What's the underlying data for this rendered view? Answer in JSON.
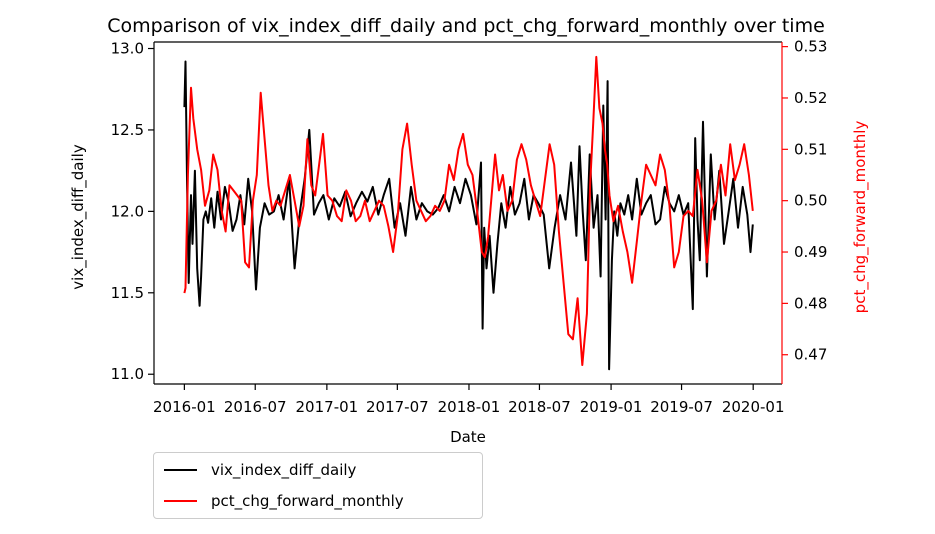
{
  "chart_data": {
    "type": "line",
    "title": "Comparison of vix_index_diff_daily and pct_chg_forward_monthly over time",
    "xlabel": "Date",
    "x_ticks": [
      "2016-01",
      "2016-07",
      "2017-01",
      "2017-07",
      "2018-01",
      "2018-07",
      "2019-01",
      "2019-07",
      "2020-01"
    ],
    "xlim": [
      "2015-10-15",
      "2020-03-15"
    ],
    "left_axis": {
      "label": "vix_index_diff_daily",
      "ylim": [
        10.94,
        13.04
      ],
      "ticks": [
        "11.0",
        "11.5",
        "12.0",
        "12.5",
        "13.0"
      ],
      "color": "#000000"
    },
    "right_axis": {
      "label": "pct_chg_forward_monthly",
      "ylim": [
        0.4643,
        0.5309
      ],
      "ticks": [
        "0.47",
        "0.48",
        "0.49",
        "0.50",
        "0.51",
        "0.52",
        "0.53"
      ],
      "color": "#ff0000"
    },
    "series": [
      {
        "name": "vix_index_diff_daily",
        "axis": "left",
        "color": "#000000",
        "x": [
          "2016-01-01",
          "2016-01-04",
          "2016-01-08",
          "2016-01-12",
          "2016-01-18",
          "2016-01-22",
          "2016-01-28",
          "2016-02-03",
          "2016-02-09",
          "2016-02-13",
          "2016-02-19",
          "2016-02-25",
          "2016-03-02",
          "2016-03-10",
          "2016-03-18",
          "2016-03-26",
          "2016-04-04",
          "2016-04-14",
          "2016-04-24",
          "2016-05-04",
          "2016-05-14",
          "2016-05-24",
          "2016-06-03",
          "2016-06-13",
          "2016-06-23",
          "2016-07-03",
          "2016-07-13",
          "2016-07-25",
          "2016-08-06",
          "2016-08-18",
          "2016-08-30",
          "2016-09-12",
          "2016-09-26",
          "2016-10-10",
          "2016-10-24",
          "2016-11-05",
          "2016-11-17",
          "2016-11-29",
          "2016-12-11",
          "2016-12-23",
          "2017-01-06",
          "2017-01-20",
          "2017-02-03",
          "2017-02-17",
          "2017-03-03",
          "2017-03-17",
          "2017-04-01",
          "2017-04-15",
          "2017-04-29",
          "2017-05-13",
          "2017-05-27",
          "2017-06-10",
          "2017-06-24",
          "2017-07-08",
          "2017-07-22",
          "2017-08-05",
          "2017-08-19",
          "2017-09-02",
          "2017-09-16",
          "2017-09-30",
          "2017-10-14",
          "2017-10-28",
          "2017-11-11",
          "2017-11-25",
          "2017-12-09",
          "2017-12-23",
          "2018-01-06",
          "2018-01-20",
          "2018-02-01",
          "2018-02-05",
          "2018-02-09",
          "2018-02-15",
          "2018-02-23",
          "2018-03-05",
          "2018-03-15",
          "2018-03-25",
          "2018-04-05",
          "2018-04-17",
          "2018-04-29",
          "2018-05-11",
          "2018-05-23",
          "2018-06-04",
          "2018-06-16",
          "2018-06-28",
          "2018-07-12",
          "2018-07-26",
          "2018-08-09",
          "2018-08-23",
          "2018-09-06",
          "2018-09-20",
          "2018-10-04",
          "2018-10-12",
          "2018-10-20",
          "2018-10-28",
          "2018-11-07",
          "2018-11-17",
          "2018-11-27",
          "2018-12-05",
          "2018-12-12",
          "2018-12-18",
          "2018-12-23",
          "2018-12-27",
          "2019-01-03",
          "2019-01-09",
          "2019-01-17",
          "2019-01-25",
          "2019-02-04",
          "2019-02-14",
          "2019-02-24",
          "2019-03-08",
          "2019-03-20",
          "2019-04-01",
          "2019-04-13",
          "2019-04-25",
          "2019-05-07",
          "2019-05-19",
          "2019-05-31",
          "2019-06-12",
          "2019-06-24",
          "2019-07-06",
          "2019-07-18",
          "2019-07-30",
          "2019-08-05",
          "2019-08-11",
          "2019-08-17",
          "2019-08-25",
          "2019-09-04",
          "2019-09-14",
          "2019-09-24",
          "2019-10-06",
          "2019-10-18",
          "2019-10-30",
          "2019-11-11",
          "2019-11-23",
          "2019-12-05",
          "2019-12-17",
          "2019-12-25",
          "2019-12-31"
        ],
        "values": [
          12.64,
          12.92,
          12.15,
          11.56,
          12.1,
          11.8,
          12.25,
          11.65,
          11.42,
          11.6,
          11.95,
          12.0,
          11.93,
          12.08,
          11.9,
          12.12,
          11.95,
          12.15,
          12.05,
          11.88,
          11.95,
          12.1,
          11.92,
          12.2,
          12.0,
          11.52,
          11.9,
          12.05,
          11.98,
          12.0,
          12.1,
          11.95,
          12.2,
          11.65,
          12.0,
          12.2,
          12.5,
          11.98,
          12.05,
          12.1,
          11.95,
          12.08,
          12.03,
          12.12,
          11.97,
          12.05,
          12.12,
          12.06,
          12.15,
          11.98,
          12.1,
          12.2,
          11.9,
          12.05,
          11.85,
          12.15,
          11.95,
          12.05,
          12.0,
          11.98,
          12.02,
          12.1,
          12.0,
          12.15,
          12.05,
          12.2,
          12.1,
          11.92,
          12.3,
          11.28,
          11.9,
          11.65,
          11.85,
          11.5,
          11.8,
          12.05,
          11.9,
          12.15,
          11.98,
          12.05,
          12.2,
          11.95,
          12.1,
          12.05,
          11.98,
          11.65,
          11.9,
          12.1,
          11.95,
          12.3,
          11.85,
          12.4,
          12.0,
          11.7,
          12.35,
          11.9,
          12.1,
          11.6,
          12.65,
          11.95,
          12.8,
          11.03,
          11.7,
          12.0,
          11.85,
          12.05,
          11.98,
          12.1,
          11.95,
          12.2,
          11.98,
          12.05,
          12.1,
          11.92,
          11.95,
          12.15,
          12.05,
          12.0,
          12.1,
          11.98,
          12.05,
          11.4,
          12.45,
          11.95,
          11.7,
          12.55,
          11.6,
          12.35,
          11.95,
          12.25,
          11.8,
          12.0,
          12.2,
          11.9,
          12.15,
          11.98,
          11.75,
          11.92
        ]
      },
      {
        "name": "pct_chg_forward_monthly",
        "axis": "right",
        "color": "#ff0000",
        "x": [
          "2016-01-01",
          "2016-01-04",
          "2016-01-10",
          "2016-01-18",
          "2016-01-24",
          "2016-02-03",
          "2016-02-13",
          "2016-02-23",
          "2016-03-05",
          "2016-03-15",
          "2016-03-26",
          "2016-04-06",
          "2016-04-16",
          "2016-04-26",
          "2016-05-06",
          "2016-05-16",
          "2016-05-26",
          "2016-06-05",
          "2016-06-15",
          "2016-06-25",
          "2016-07-05",
          "2016-07-15",
          "2016-07-25",
          "2016-08-04",
          "2016-08-14",
          "2016-08-24",
          "2016-09-04",
          "2016-09-16",
          "2016-09-28",
          "2016-10-10",
          "2016-10-22",
          "2016-11-02",
          "2016-11-12",
          "2016-11-22",
          "2016-12-02",
          "2016-12-12",
          "2016-12-22",
          "2017-01-03",
          "2017-01-15",
          "2017-01-27",
          "2017-02-08",
          "2017-02-20",
          "2017-03-04",
          "2017-03-16",
          "2017-03-28",
          "2017-04-09",
          "2017-04-21",
          "2017-05-03",
          "2017-05-15",
          "2017-05-27",
          "2017-06-08",
          "2017-06-20",
          "2017-07-02",
          "2017-07-14",
          "2017-07-26",
          "2017-08-07",
          "2017-08-19",
          "2017-08-31",
          "2017-09-12",
          "2017-09-24",
          "2017-10-06",
          "2017-10-18",
          "2017-10-30",
          "2017-11-11",
          "2017-11-23",
          "2017-12-05",
          "2017-12-17",
          "2017-12-29",
          "2018-01-10",
          "2018-01-22",
          "2018-02-03",
          "2018-02-11",
          "2018-02-19",
          "2018-02-27",
          "2018-03-09",
          "2018-03-19",
          "2018-03-29",
          "2018-04-10",
          "2018-04-22",
          "2018-05-04",
          "2018-05-16",
          "2018-05-28",
          "2018-06-09",
          "2018-06-21",
          "2018-07-03",
          "2018-07-15",
          "2018-07-27",
          "2018-08-08",
          "2018-08-20",
          "2018-09-01",
          "2018-09-13",
          "2018-09-25",
          "2018-10-07",
          "2018-10-19",
          "2018-10-31",
          "2018-11-08",
          "2018-11-16",
          "2018-11-24",
          "2018-12-02",
          "2018-12-10",
          "2018-12-16",
          "2018-12-22",
          "2018-12-28",
          "2019-01-07",
          "2019-01-19",
          "2019-01-31",
          "2019-02-12",
          "2019-02-24",
          "2019-03-08",
          "2019-03-20",
          "2019-04-01",
          "2019-04-13",
          "2019-04-25",
          "2019-05-07",
          "2019-05-19",
          "2019-05-31",
          "2019-06-12",
          "2019-06-24",
          "2019-07-06",
          "2019-07-18",
          "2019-07-30",
          "2019-08-11",
          "2019-08-23",
          "2019-09-04",
          "2019-09-16",
          "2019-09-28",
          "2019-10-10",
          "2019-10-22",
          "2019-11-03",
          "2019-11-15",
          "2019-11-27",
          "2019-12-09",
          "2019-12-21",
          "2019-12-31"
        ],
        "values": [
          0.482,
          0.483,
          0.505,
          0.522,
          0.516,
          0.51,
          0.506,
          0.499,
          0.502,
          0.509,
          0.506,
          0.498,
          0.494,
          0.503,
          0.502,
          0.501,
          0.5,
          0.488,
          0.487,
          0.5,
          0.505,
          0.521,
          0.512,
          0.503,
          0.498,
          0.5,
          0.499,
          0.502,
          0.505,
          0.5,
          0.495,
          0.499,
          0.512,
          0.503,
          0.501,
          0.507,
          0.513,
          0.501,
          0.5,
          0.497,
          0.496,
          0.502,
          0.5,
          0.496,
          0.497,
          0.5,
          0.496,
          0.498,
          0.5,
          0.499,
          0.495,
          0.49,
          0.497,
          0.51,
          0.515,
          0.507,
          0.5,
          0.498,
          0.496,
          0.497,
          0.499,
          0.498,
          0.5,
          0.507,
          0.504,
          0.51,
          0.513,
          0.507,
          0.505,
          0.498,
          0.49,
          0.489,
          0.493,
          0.5,
          0.509,
          0.502,
          0.505,
          0.498,
          0.5,
          0.508,
          0.511,
          0.508,
          0.503,
          0.5,
          0.497,
          0.504,
          0.511,
          0.507,
          0.494,
          0.484,
          0.474,
          0.473,
          0.481,
          0.468,
          0.478,
          0.503,
          0.515,
          0.528,
          0.518,
          0.515,
          0.51,
          0.507,
          0.501,
          0.496,
          0.499,
          0.494,
          0.49,
          0.484,
          0.492,
          0.5,
          0.507,
          0.505,
          0.503,
          0.509,
          0.506,
          0.499,
          0.487,
          0.49,
          0.497,
          0.498,
          0.497,
          0.506,
          0.5,
          0.488,
          0.498,
          0.5,
          0.507,
          0.501,
          0.511,
          0.504,
          0.507,
          0.511,
          0.505,
          0.498
        ]
      }
    ]
  }
}
